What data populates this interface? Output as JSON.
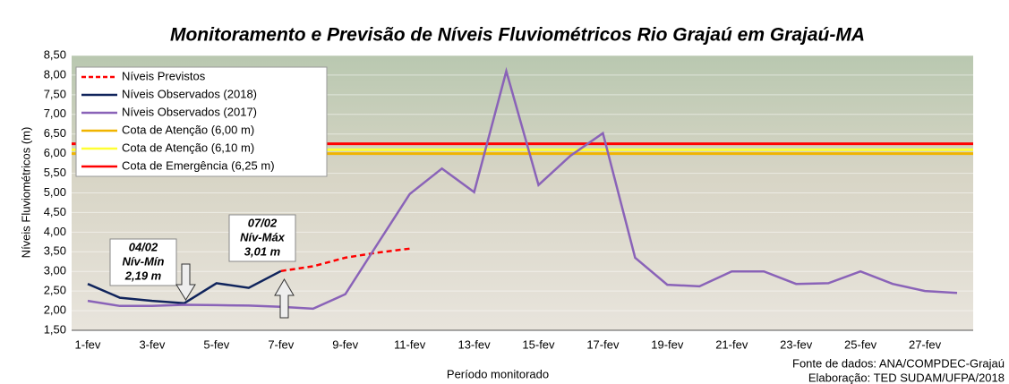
{
  "chart_data": {
    "type": "line",
    "title": "Monitoramento e Previsão de Níveis Fluviométricos Rio Grajaú em Grajaú-MA",
    "x_label": "Período monitorado",
    "y_label": "Níveis Fluviométricos (m)",
    "categories": [
      "1-fev",
      null,
      "3-fev",
      null,
      "5-fev",
      null,
      "7-fev",
      null,
      "9-fev",
      null,
      "11-fev",
      null,
      "13-fev",
      null,
      "15-fev",
      null,
      "17-fev",
      null,
      "19-fev",
      null,
      "21-fev",
      null,
      "23-fev",
      null,
      "25-fev",
      null,
      "27-fev",
      null
    ],
    "ylim": [
      1.5,
      8.5
    ],
    "yticks": [
      {
        "value": 1.5,
        "label": "1,50"
      },
      {
        "value": 2,
        "label": "2,00"
      },
      {
        "value": 2.5,
        "label": "2,50"
      },
      {
        "value": 3,
        "label": "3,00"
      },
      {
        "value": 3.5,
        "label": "3,50"
      },
      {
        "value": 4,
        "label": "4,00"
      },
      {
        "value": 4.5,
        "label": "4,50"
      },
      {
        "value": 5,
        "label": "5,00"
      },
      {
        "value": 5.5,
        "label": "5,50"
      },
      {
        "value": 6,
        "label": "6,00"
      },
      {
        "value": 6.5,
        "label": "6,50"
      },
      {
        "value": 7,
        "label": "7,00"
      },
      {
        "value": 7.5,
        "label": "7,50"
      },
      {
        "value": 8,
        "label": "8,00"
      },
      {
        "value": 8.5,
        "label": "8,50"
      }
    ],
    "series": [
      {
        "name": "Níveis Previstos",
        "color": "#ff0000",
        "dashed": true,
        "values": [
          null,
          null,
          null,
          null,
          null,
          null,
          3.01,
          3.13,
          3.35,
          3.48,
          3.58,
          null,
          null,
          null,
          null,
          null,
          null,
          null,
          null,
          null,
          null,
          null,
          null,
          null,
          null,
          null,
          null,
          null
        ]
      },
      {
        "name": "Níveis Observados (2018)",
        "color": "#10245c",
        "dashed": false,
        "values": [
          2.68,
          2.33,
          2.25,
          2.19,
          2.7,
          2.58,
          3.01,
          null,
          null,
          null,
          null,
          null,
          null,
          null,
          null,
          null,
          null,
          null,
          null,
          null,
          null,
          null,
          null,
          null,
          null,
          null,
          null,
          null
        ]
      },
      {
        "name": "Níveis Observados (2017)",
        "color": "#8a63b8",
        "dashed": false,
        "values": [
          2.25,
          2.12,
          2.12,
          2.15,
          2.14,
          2.13,
          2.1,
          2.05,
          2.42,
          3.7,
          4.97,
          5.62,
          5.02,
          8.1,
          5.2,
          5.95,
          6.52,
          3.35,
          2.66,
          2.62,
          3.0,
          3.0,
          2.68,
          2.7,
          3.0,
          2.68,
          2.5,
          2.45
        ]
      }
    ],
    "thresholds": [
      {
        "name": "Cota de Atenção (6,00 m)",
        "color": "#f0b400",
        "value": 6.0
      },
      {
        "name": "Cota de Atenção (6,10 m)",
        "color": "#ffff33",
        "value": 6.1
      },
      {
        "name": "Cota de Emergência (6,25 m)",
        "color": "#ff0000",
        "value": 6.25
      }
    ],
    "annotations": [
      {
        "date": "04/02",
        "label": "Nív-Mín",
        "value": "2,19 m"
      },
      {
        "date": "07/02",
        "label": "Nív-Máx",
        "value": "3,01 m"
      }
    ],
    "source": "Fonte de dados: ANA/COMPDEC-Grajaú",
    "credit": "Elaboração: TED SUDAM/UFPA/2018"
  }
}
